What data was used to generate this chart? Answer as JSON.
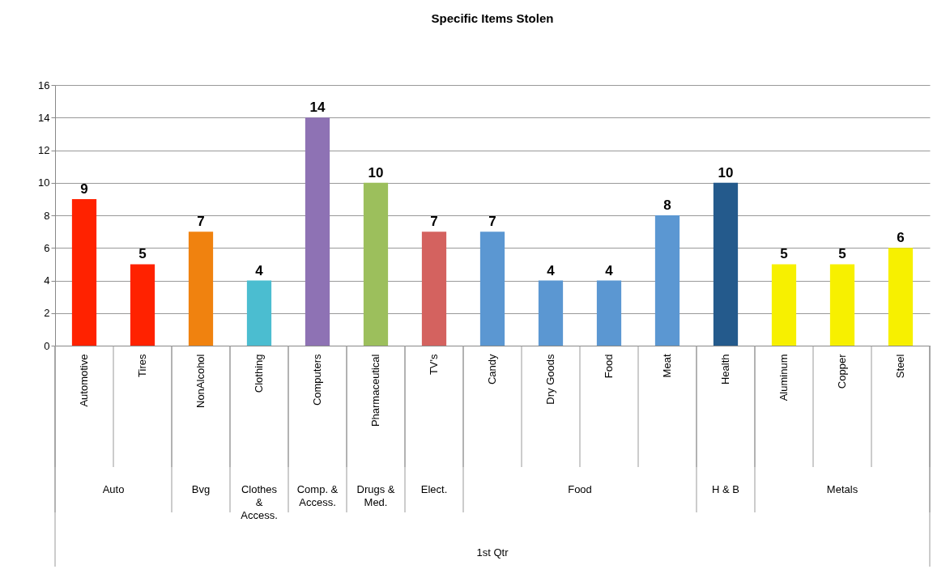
{
  "chart_data": {
    "type": "bar",
    "title": "Specific Items Stolen",
    "categories": [
      "Automotive",
      "Tires",
      "NonAlcohol",
      "Clothing",
      "Computers",
      "Pharmaceutical",
      "TV's",
      "Candy",
      "Dry Goods",
      "Food",
      "Meat",
      "Health",
      "Aluminum",
      "Copper",
      "Steel"
    ],
    "values": [
      9,
      5,
      7,
      4,
      14,
      10,
      7,
      7,
      4,
      4,
      8,
      10,
      5,
      5,
      6
    ],
    "colors": [
      "#ff2200",
      "#ff2200",
      "#f0820f",
      "#4bbdd0",
      "#8e72b4",
      "#9cbf5c",
      "#d4625f",
      "#5b97d2",
      "#5b97d2",
      "#5b97d2",
      "#5b97d2",
      "#245a8c",
      "#f7f000",
      "#f7f000",
      "#f7f000"
    ],
    "ylim": [
      0,
      16
    ],
    "yticks": [
      0,
      2,
      4,
      6,
      8,
      10,
      12,
      14,
      16
    ],
    "grid": "y",
    "data_labels": true,
    "annotations": [
      "Auto",
      "Bvg",
      "Clothes & Access.",
      "Comp. & Access.",
      "Drugs & Med.",
      "Elect.",
      "Food",
      "H & B",
      "Metals",
      "1st Qtr"
    ]
  }
}
